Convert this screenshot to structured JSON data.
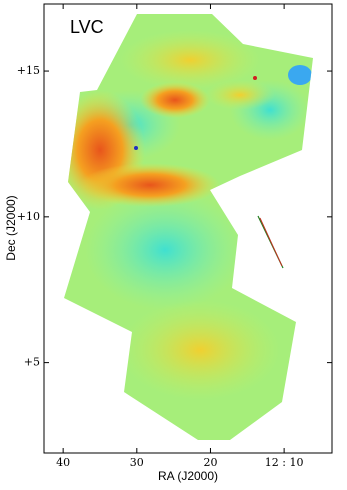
{
  "chart_data": {
    "type": "map",
    "title": "LVC",
    "xlabel": "RA (J2000)",
    "ylabel": "Dec (J2000)",
    "xlim": [
      42.6,
      3.5
    ],
    "xticks": [
      40,
      30,
      20,
      {
        "value": 10,
        "label": "12 : 10"
      }
    ],
    "ylim": [
      1.9,
      17.3
    ],
    "yticks": [
      {
        "value": 5,
        "label": "+5"
      },
      {
        "value": 10,
        "label": "+10"
      },
      {
        "value": 15,
        "label": "+15"
      }
    ]
  }
}
